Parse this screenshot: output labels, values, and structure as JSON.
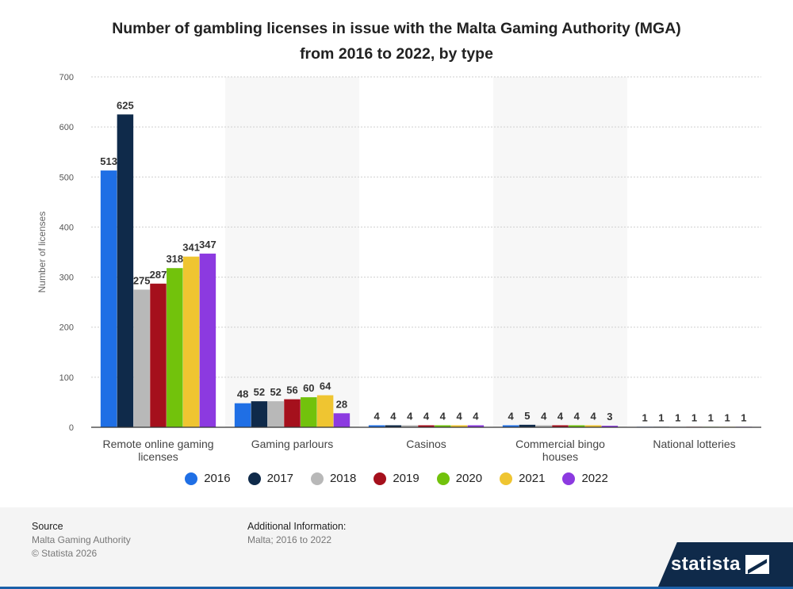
{
  "title_line1": "Number of gambling licenses in issue with the Malta Gaming Authority (MGA)",
  "title_line2": "from 2016 to 2022, by type",
  "chart_data": {
    "type": "bar",
    "categories": [
      "Remote online gaming licenses",
      "Gaming parlours",
      "Casinos",
      "Commercial bingo houses",
      "National lotteries"
    ],
    "category_label_lines": [
      [
        "Remote online gaming",
        "licenses"
      ],
      [
        "Gaming parlours"
      ],
      [
        "Casinos"
      ],
      [
        "Commercial bingo",
        "houses"
      ],
      [
        "National lotteries"
      ]
    ],
    "series": [
      {
        "name": "2016",
        "color": "#1f6fe5",
        "values": [
          513,
          48,
          4,
          4,
          1
        ]
      },
      {
        "name": "2017",
        "color": "#0f2a4a",
        "values": [
          625,
          52,
          4,
          5,
          1
        ]
      },
      {
        "name": "2018",
        "color": "#b8b8b8",
        "values": [
          275,
          52,
          4,
          4,
          1
        ]
      },
      {
        "name": "2019",
        "color": "#a5101c",
        "values": [
          287,
          56,
          4,
          4,
          1
        ]
      },
      {
        "name": "2020",
        "color": "#72c20c",
        "values": [
          318,
          60,
          4,
          4,
          1
        ]
      },
      {
        "name": "2021",
        "color": "#efc531",
        "values": [
          341,
          64,
          4,
          4,
          1
        ]
      },
      {
        "name": "2022",
        "color": "#8c3ae0",
        "values": [
          347,
          28,
          4,
          3,
          1
        ]
      }
    ],
    "ylabel": "Number of licenses",
    "ylim": [
      0,
      700
    ],
    "yticks": [
      0,
      100,
      200,
      300,
      400,
      500,
      600,
      700
    ],
    "grid": true,
    "legend_position": "bottom"
  },
  "footer": {
    "source_heading": "Source",
    "source_name": "Malta Gaming Authority",
    "copyright": "© Statista 2026",
    "additional_heading": "Additional Information:",
    "additional_text": "Malta; 2016 to 2022"
  },
  "logo_text": "statista"
}
